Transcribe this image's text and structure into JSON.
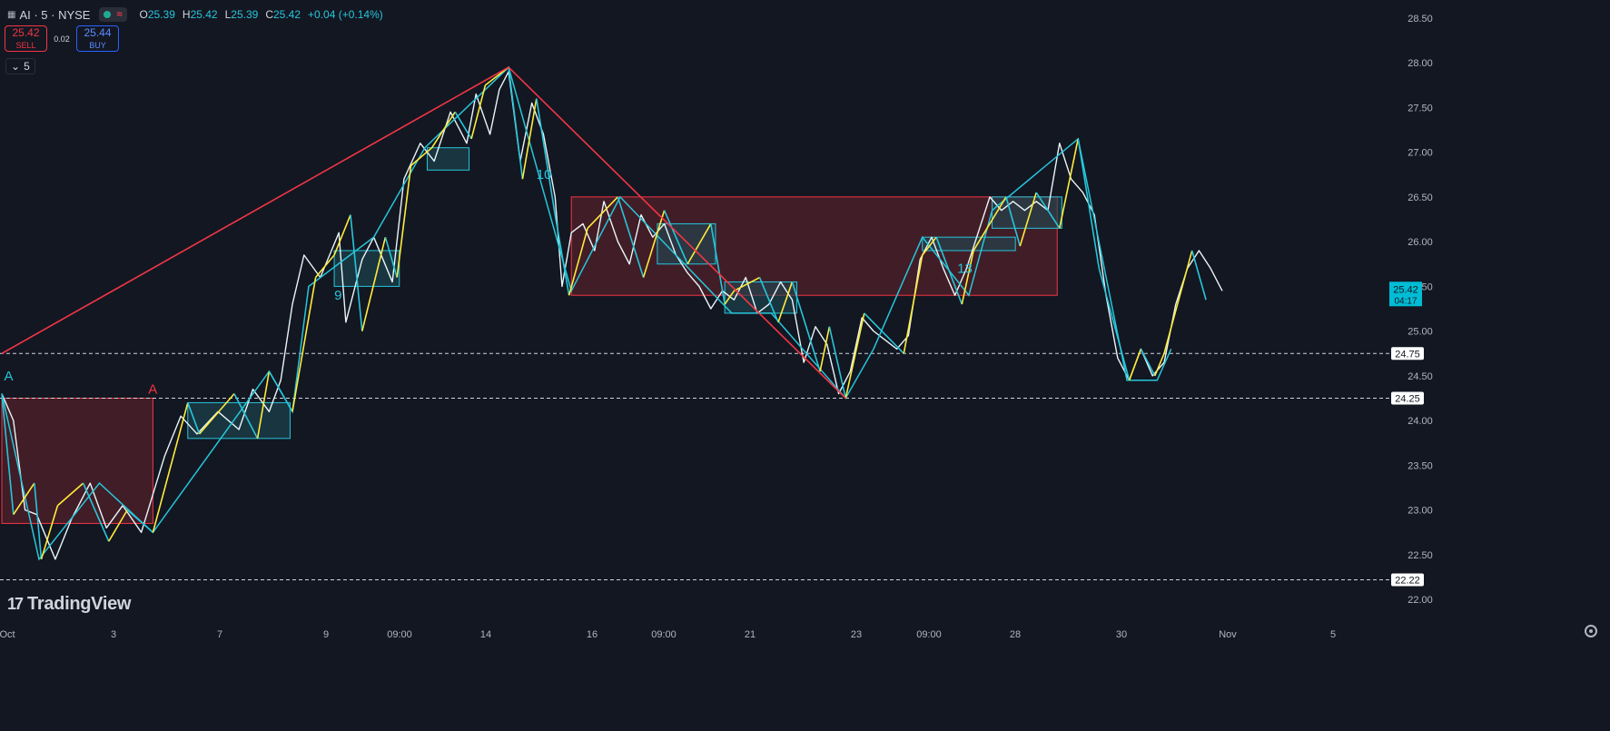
{
  "legend": {
    "symbol": "AI · 5 · NYSE",
    "open_label": "O",
    "open": "25.39",
    "high_label": "H",
    "high": "25.42",
    "low_label": "L",
    "low": "25.39",
    "close_label": "C",
    "close": "25.42",
    "change": "+0.04 (+0.14%)"
  },
  "trade": {
    "sell_price": "25.42",
    "sell_label": "SELL",
    "spread": "0.02",
    "buy_price": "25.44",
    "buy_label": "BUY"
  },
  "interval": "5",
  "brand": "TradingView",
  "icons": [
    "chart-grid-icon",
    "market-open-dot-icon",
    "wave-icon",
    "chevron-down-icon",
    "tradingview-logo-icon",
    "settings-icon"
  ],
  "colors": {
    "background": "#131722",
    "price": "#ffffff",
    "up_swing": "#ffeb3b",
    "down_swing": "#26c6da",
    "trend_line": "#f23645",
    "box_red": "#4a1e28",
    "box_teal": "#1e4a55"
  },
  "chart_data": {
    "type": "line",
    "x_ticks": [
      "Oct",
      "3",
      "7",
      "9",
      "09:00",
      "14",
      "16",
      "09:00",
      "21",
      "23",
      "09:00",
      "28",
      "30",
      "Nov",
      "5"
    ],
    "y_ticks": [
      "28.50",
      "28.00",
      "27.50",
      "27.00",
      "26.50",
      "26.00",
      "25.50",
      "25.00",
      "24.50",
      "24.00",
      "23.50",
      "23.00",
      "22.50",
      "22.00"
    ],
    "ylim": [
      21.9,
      28.6
    ],
    "current_price": {
      "value": "25.42",
      "countdown": "04:17"
    },
    "horizontal_levels": [
      "24.75",
      "24.25",
      "22.22"
    ],
    "price_path": [
      [
        0,
        24.3
      ],
      [
        0.5,
        24.0
      ],
      [
        1,
        23.0
      ],
      [
        1.5,
        22.95
      ],
      [
        2.3,
        22.45
      ],
      [
        3,
        22.9
      ],
      [
        3.8,
        23.3
      ],
      [
        4.5,
        22.8
      ],
      [
        5.2,
        23.05
      ],
      [
        6,
        22.75
      ],
      [
        7,
        23.6
      ],
      [
        7.7,
        24.05
      ],
      [
        8.4,
        23.85
      ],
      [
        9.3,
        24.1
      ],
      [
        10.2,
        23.9
      ],
      [
        10.8,
        24.35
      ],
      [
        11.5,
        24.1
      ],
      [
        12,
        24.45
      ],
      [
        12.5,
        25.3
      ],
      [
        13,
        25.85
      ],
      [
        13.7,
        25.6
      ],
      [
        14.5,
        26.1
      ],
      [
        14.8,
        25.1
      ],
      [
        15.5,
        25.8
      ],
      [
        16,
        26.05
      ],
      [
        16.8,
        25.55
      ],
      [
        17.3,
        26.7
      ],
      [
        18,
        27.1
      ],
      [
        18.6,
        26.9
      ],
      [
        19.3,
        27.45
      ],
      [
        20,
        27.1
      ],
      [
        20.4,
        27.65
      ],
      [
        21,
        27.2
      ],
      [
        21.4,
        27.7
      ],
      [
        21.8,
        27.9
      ],
      [
        22.3,
        26.9
      ],
      [
        22.8,
        27.55
      ],
      [
        23.3,
        27.2
      ],
      [
        23.8,
        26.5
      ],
      [
        24.1,
        25.5
      ],
      [
        24.5,
        26.1
      ],
      [
        25,
        26.2
      ],
      [
        25.5,
        25.9
      ],
      [
        25.9,
        26.45
      ],
      [
        26.5,
        26.0
      ],
      [
        27,
        25.75
      ],
      [
        27.5,
        26.3
      ],
      [
        28,
        26.05
      ],
      [
        28.5,
        26.2
      ],
      [
        29,
        25.85
      ],
      [
        29.5,
        25.65
      ],
      [
        30,
        25.5
      ],
      [
        30.5,
        25.25
      ],
      [
        31,
        25.45
      ],
      [
        31.5,
        25.35
      ],
      [
        32,
        25.6
      ],
      [
        32.5,
        25.2
      ],
      [
        33,
        25.3
      ],
      [
        33.5,
        25.55
      ],
      [
        34,
        25.35
      ],
      [
        34.5,
        24.65
      ],
      [
        35,
        25.05
      ],
      [
        35.5,
        24.85
      ],
      [
        36,
        24.3
      ],
      [
        36.5,
        24.55
      ],
      [
        37,
        25.15
      ],
      [
        37.5,
        25.0
      ],
      [
        38,
        24.9
      ],
      [
        38.5,
        24.8
      ],
      [
        39,
        24.95
      ],
      [
        39.5,
        25.8
      ],
      [
        40,
        26.05
      ],
      [
        40.5,
        25.7
      ],
      [
        41,
        25.4
      ],
      [
        41.5,
        25.7
      ],
      [
        42,
        26.1
      ],
      [
        42.5,
        26.5
      ],
      [
        43,
        26.35
      ],
      [
        43.5,
        26.45
      ],
      [
        44,
        26.35
      ],
      [
        44.5,
        26.45
      ],
      [
        45,
        26.35
      ],
      [
        45.5,
        27.1
      ],
      [
        46,
        26.7
      ],
      [
        46.5,
        26.55
      ],
      [
        47,
        26.3
      ],
      [
        47.5,
        25.4
      ],
      [
        48,
        24.7
      ],
      [
        48.5,
        24.45
      ],
      [
        49,
        24.8
      ],
      [
        49.5,
        24.5
      ],
      [
        50,
        24.65
      ],
      [
        50.5,
        25.3
      ],
      [
        51,
        25.7
      ],
      [
        51.5,
        25.9
      ],
      [
        52,
        25.7
      ],
      [
        52.5,
        25.45
      ]
    ],
    "zigzag_primary": [
      [
        0,
        24.3
      ],
      [
        0.5,
        22.95
      ],
      [
        1.4,
        23.3
      ],
      [
        1.7,
        22.45
      ],
      [
        2.4,
        23.05
      ],
      [
        3.5,
        23.3
      ],
      [
        4.6,
        22.65
      ],
      [
        5.4,
        23.0
      ],
      [
        6.5,
        22.75
      ],
      [
        8,
        24.2
      ],
      [
        8.5,
        23.85
      ],
      [
        10,
        24.3
      ],
      [
        11,
        23.8
      ],
      [
        11.5,
        24.55
      ],
      [
        12.5,
        24.1
      ],
      [
        13.5,
        25.6
      ],
      [
        14.3,
        25.85
      ],
      [
        15,
        26.3
      ],
      [
        15.5,
        25.0
      ],
      [
        16.5,
        26.05
      ],
      [
        17,
        25.6
      ],
      [
        17.6,
        26.85
      ],
      [
        18.5,
        27.05
      ],
      [
        19.5,
        27.45
      ],
      [
        20.2,
        27.15
      ],
      [
        20.8,
        27.75
      ],
      [
        21.8,
        27.95
      ],
      [
        22.4,
        26.7
      ],
      [
        23,
        27.6
      ],
      [
        23.8,
        26.3
      ],
      [
        24.4,
        25.4
      ],
      [
        25.2,
        26.15
      ],
      [
        26.5,
        26.5
      ],
      [
        27.6,
        25.6
      ],
      [
        28.5,
        26.35
      ],
      [
        29.5,
        25.75
      ],
      [
        30.5,
        26.2
      ],
      [
        31.1,
        25.3
      ],
      [
        31.5,
        25.45
      ],
      [
        32.6,
        25.6
      ],
      [
        33.4,
        25.1
      ],
      [
        34,
        25.55
      ],
      [
        35.2,
        24.55
      ],
      [
        35.6,
        25.05
      ],
      [
        36.3,
        24.25
      ],
      [
        37.1,
        25.2
      ],
      [
        38.8,
        24.75
      ],
      [
        39.6,
        25.85
      ],
      [
        40.2,
        26.05
      ],
      [
        41.3,
        25.3
      ],
      [
        41.8,
        25.9
      ],
      [
        43.2,
        26.5
      ],
      [
        43.8,
        25.95
      ],
      [
        44.5,
        26.55
      ],
      [
        45.5,
        26.15
      ],
      [
        46.3,
        27.15
      ],
      [
        47.2,
        25.7
      ],
      [
        48.5,
        24.45
      ],
      [
        49,
        24.8
      ],
      [
        49.6,
        24.5
      ],
      [
        50,
        24.75
      ],
      [
        51.2,
        25.9
      ],
      [
        51.8,
        25.35
      ]
    ],
    "zigzag_secondary": [
      [
        0,
        24.3
      ],
      [
        1.6,
        22.45
      ],
      [
        4.2,
        23.3
      ],
      [
        6.5,
        22.75
      ],
      [
        11.5,
        24.55
      ],
      [
        12.5,
        24.1
      ],
      [
        13.2,
        25.5
      ],
      [
        16,
        26.05
      ],
      [
        18.2,
        27.05
      ],
      [
        21.8,
        27.95
      ],
      [
        24.5,
        25.45
      ],
      [
        26.6,
        26.5
      ],
      [
        31.4,
        25.2
      ],
      [
        33.1,
        25.2
      ],
      [
        36.3,
        24.25
      ],
      [
        37.5,
        24.8
      ],
      [
        39.6,
        26.05
      ],
      [
        41.6,
        25.4
      ],
      [
        42.6,
        26.35
      ],
      [
        46.3,
        27.15
      ],
      [
        48.4,
        24.45
      ],
      [
        49.7,
        24.45
      ],
      [
        50.3,
        24.8
      ]
    ],
    "trend_lines": [
      {
        "color": "red",
        "points": [
          [
            0,
            24.75
          ],
          [
            21.8,
            27.95
          ]
        ]
      },
      {
        "color": "red",
        "points": [
          [
            21.8,
            27.95
          ],
          [
            36.3,
            24.25
          ]
        ]
      }
    ],
    "boxes": [
      {
        "color": "red",
        "x": [
          0,
          6.5
        ],
        "y": [
          22.85,
          24.25
        ]
      },
      {
        "color": "red",
        "x": [
          24.5,
          45.4
        ],
        "y": [
          25.4,
          26.5
        ]
      },
      {
        "color": "teal",
        "x": [
          8,
          12.4
        ],
        "y": [
          23.8,
          24.2
        ]
      },
      {
        "color": "teal",
        "x": [
          14.3,
          17.1
        ],
        "y": [
          25.5,
          25.9
        ]
      },
      {
        "color": "teal",
        "x": [
          18.3,
          20.1
        ],
        "y": [
          26.8,
          27.05
        ]
      },
      {
        "color": "teal",
        "x": [
          28.2,
          30.7
        ],
        "y": [
          25.75,
          26.2
        ]
      },
      {
        "color": "teal",
        "x": [
          31.1,
          34.2
        ],
        "y": [
          25.2,
          25.55
        ]
      },
      {
        "color": "teal",
        "x": [
          39.6,
          43.6
        ],
        "y": [
          25.9,
          26.05
        ]
      },
      {
        "color": "teal",
        "x": [
          42.6,
          45.6
        ],
        "y": [
          26.15,
          26.5
        ]
      }
    ],
    "annotations": [
      {
        "text": "A",
        "x": 0.1,
        "y": 24.45,
        "color": "teal"
      },
      {
        "text": "A",
        "x": 6.3,
        "y": 24.3,
        "color": "red"
      },
      {
        "text": "9",
        "x": 14.3,
        "y": 25.35,
        "color": "teal"
      },
      {
        "text": "10",
        "x": 23,
        "y": 26.7,
        "color": "teal"
      },
      {
        "text": "13",
        "x": 41.1,
        "y": 25.65,
        "color": "teal"
      }
    ]
  }
}
